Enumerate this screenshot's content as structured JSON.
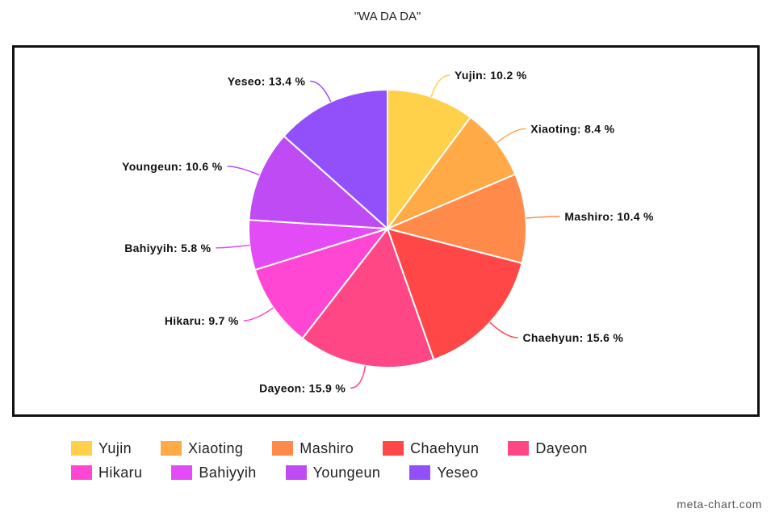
{
  "chart_data": {
    "type": "pie",
    "title": "\"WA DA DA\"",
    "unit": "%",
    "categories": [
      "Yujin",
      "Xiaoting",
      "Mashiro",
      "Chaehyun",
      "Dayeon",
      "Hikaru",
      "Bahiyyih",
      "Youngeun",
      "Yeseo"
    ],
    "values": [
      10.2,
      8.4,
      10.4,
      15.6,
      15.9,
      9.7,
      5.8,
      10.6,
      13.4
    ],
    "colors": [
      "#FFD04A",
      "#FFAA47",
      "#FF8A49",
      "#FF4747",
      "#FF4785",
      "#FF47D4",
      "#E24BF5",
      "#BF4BF5",
      "#9150FA"
    ],
    "data_labels": [
      "Yujin: 10.2 %",
      "Xiaoting: 8.4 %",
      "Mashiro: 10.4 %",
      "Chaehyun: 15.6 %",
      "Dayeon: 15.9 %",
      "Hikaru: 9.7 %",
      "Bahiyyih: 5.8 %",
      "Youngeun: 10.6 %",
      "Yeseo: 13.4 %"
    ],
    "legend_position": "bottom"
  },
  "watermark": "meta-chart.com"
}
